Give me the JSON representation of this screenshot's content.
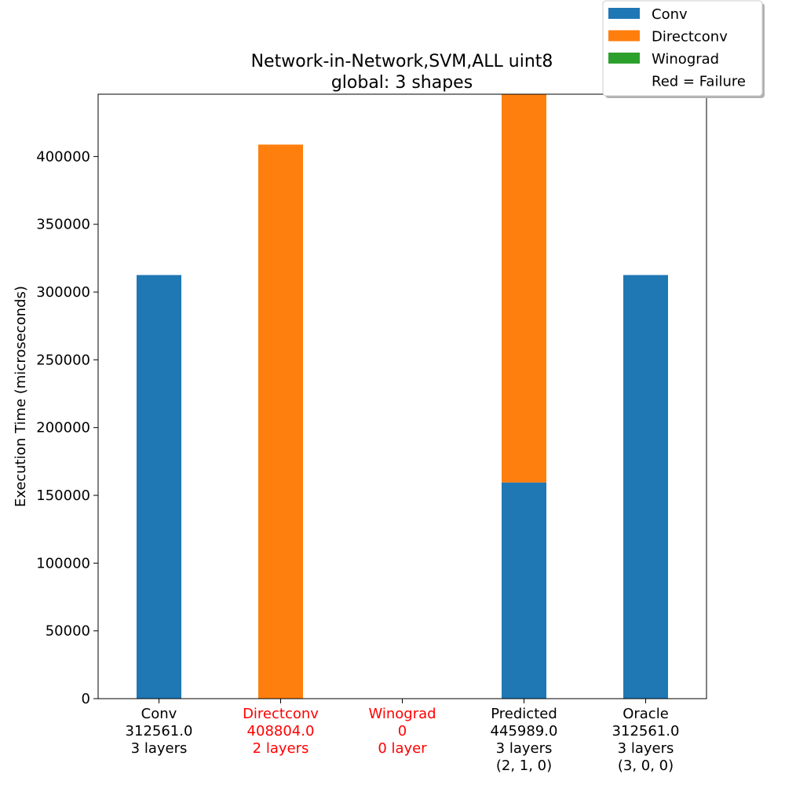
{
  "chart_data": {
    "type": "bar",
    "stacked": true,
    "title": "Network-in-Network,SVM,ALL uint8",
    "subtitle": "global: 3 shapes",
    "xlabel": "",
    "ylabel": "Execution Time (microseconds)",
    "ylim": [
      0,
      445989
    ],
    "yticks": [
      0,
      50000,
      100000,
      150000,
      200000,
      250000,
      300000,
      350000,
      400000
    ],
    "grid": false,
    "legend_position": "top-right",
    "categories": [
      {
        "lines": [
          "Conv",
          "312561.0",
          "3 layers"
        ],
        "failure": false
      },
      {
        "lines": [
          "Directconv",
          "408804.0",
          "2 layers"
        ],
        "failure": true
      },
      {
        "lines": [
          "Winograd",
          "0",
          "0 layer"
        ],
        "failure": true
      },
      {
        "lines": [
          "Predicted",
          "445989.0",
          "3 layers",
          "(2, 1, 0)"
        ],
        "failure": false
      },
      {
        "lines": [
          "Oracle",
          "312561.0",
          "3 layers",
          "(3, 0, 0)"
        ],
        "failure": false
      }
    ],
    "series": [
      {
        "name": "Conv",
        "color": "#1f77b4",
        "values": [
          312561,
          0,
          0,
          159500,
          312561
        ]
      },
      {
        "name": "Directconv",
        "color": "#ff7f0e",
        "values": [
          0,
          408804,
          0,
          286489,
          0
        ]
      },
      {
        "name": "Winograd",
        "color": "#2ca02c",
        "values": [
          0,
          0,
          0,
          0,
          0
        ]
      }
    ],
    "legend_extra": "Red = Failure",
    "failure_color": "#ff0000"
  }
}
